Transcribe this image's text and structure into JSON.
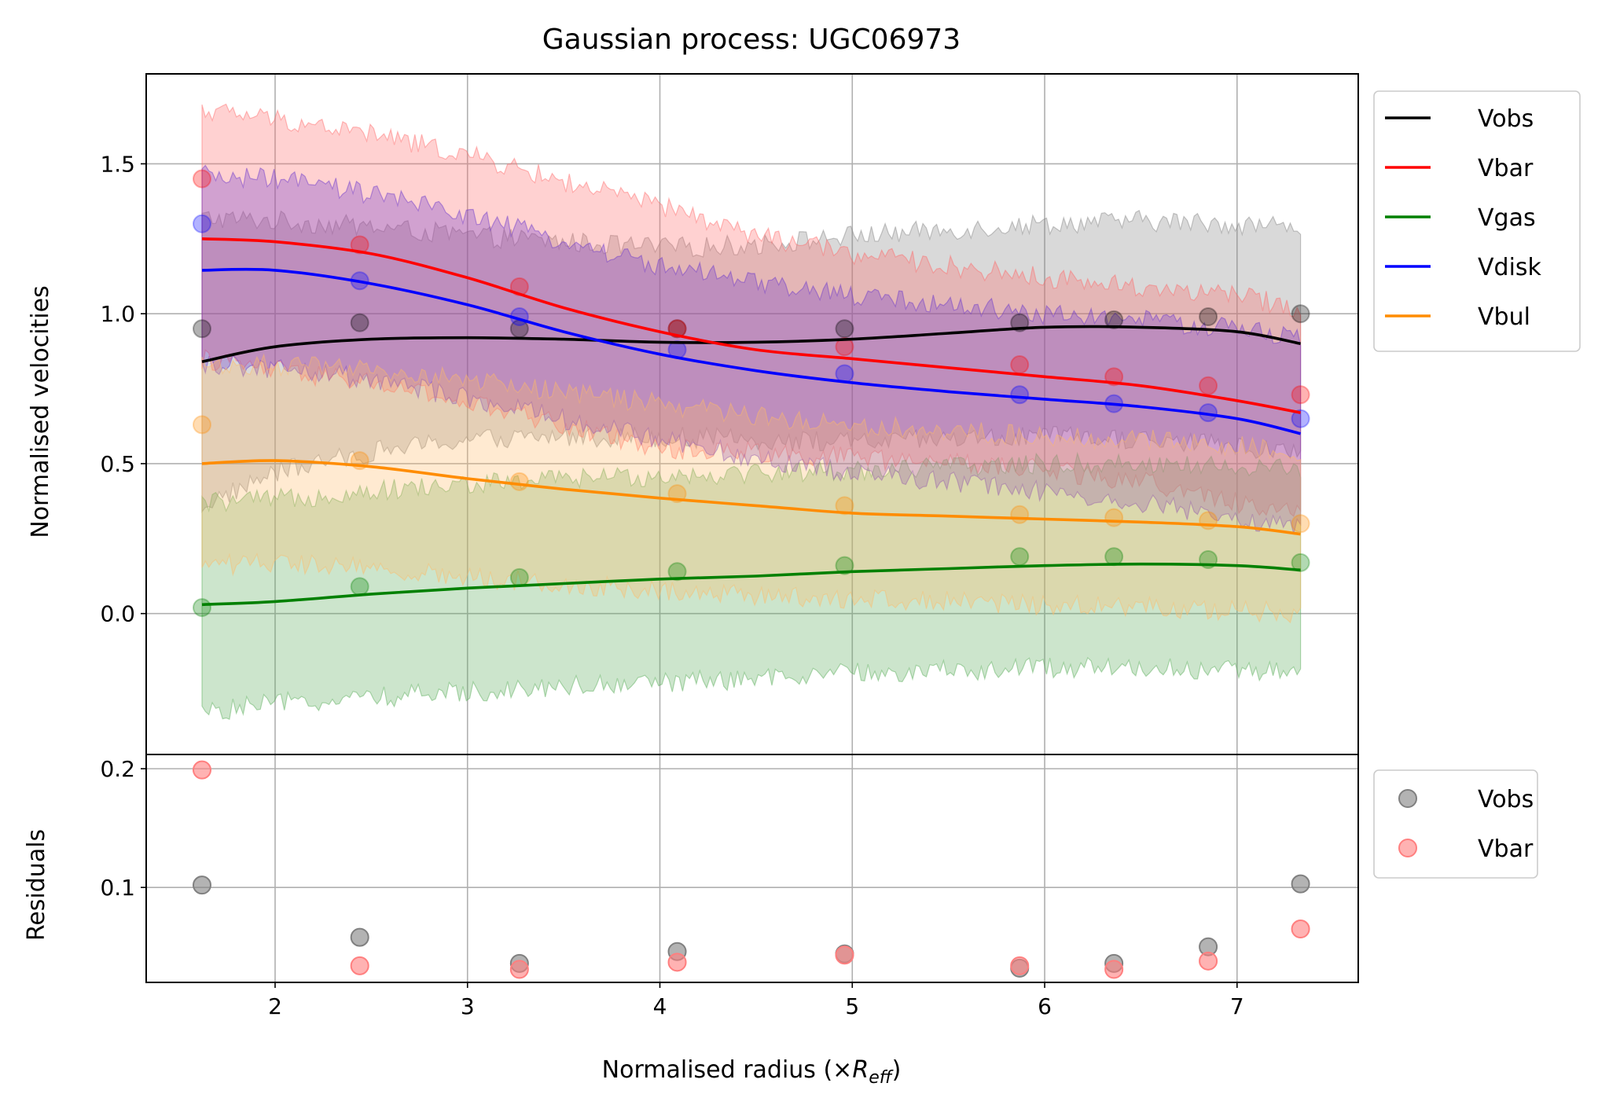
{
  "chart_data": [
    {
      "type": "line",
      "panel": "main",
      "title": "Gaussian process: UGC06973",
      "xlabel": "",
      "ylabel": "Normalised velocities",
      "xlim": [
        1.33,
        7.63
      ],
      "ylim": [
        -0.47,
        1.8
      ],
      "xticks": [
        2,
        3,
        4,
        5,
        6,
        7
      ],
      "yticks": [
        0.0,
        0.5,
        1.0,
        1.5
      ],
      "ytick_labels": [
        "0.0",
        "0.5",
        "1.0",
        "1.5"
      ],
      "grid": true,
      "legend_position": "outside-right-top",
      "points_x": [
        1.62,
        2.44,
        3.27,
        4.09,
        4.96,
        5.87,
        6.36,
        6.85,
        7.33
      ],
      "curve_x": [
        1.62,
        2.0,
        2.5,
        3.0,
        3.5,
        4.0,
        4.5,
        5.0,
        5.5,
        6.0,
        6.5,
        7.0,
        7.33
      ],
      "series": [
        {
          "name": "Vobs",
          "color": "#000000",
          "band_color": "#808080",
          "points": [
            0.95,
            0.97,
            0.95,
            0.95,
            0.95,
            0.97,
            0.98,
            0.99,
            1.0
          ],
          "curve": [
            0.84,
            0.89,
            0.915,
            0.92,
            0.915,
            0.905,
            0.905,
            0.915,
            0.935,
            0.955,
            0.955,
            0.94,
            0.9
          ],
          "band_lo": [
            0.36,
            0.47,
            0.54,
            0.58,
            0.59,
            0.59,
            0.58,
            0.57,
            0.58,
            0.59,
            0.58,
            0.56,
            0.53
          ],
          "band_hi": [
            1.32,
            1.31,
            1.29,
            1.26,
            1.24,
            1.22,
            1.23,
            1.26,
            1.28,
            1.3,
            1.31,
            1.3,
            1.29
          ]
        },
        {
          "name": "Vbar",
          "color": "#ff0000",
          "band_color": "#ff6666",
          "points": [
            1.45,
            1.23,
            1.09,
            0.95,
            0.89,
            0.83,
            0.79,
            0.76,
            0.73
          ],
          "curve": [
            1.25,
            1.24,
            1.2,
            1.12,
            1.02,
            0.94,
            0.88,
            0.85,
            0.82,
            0.79,
            0.76,
            0.71,
            0.67
          ],
          "band_lo": [
            0.85,
            0.81,
            0.77,
            0.7,
            0.63,
            0.55,
            0.54,
            0.52,
            0.5,
            0.48,
            0.44,
            0.37,
            0.33
          ],
          "band_hi": [
            1.68,
            1.65,
            1.6,
            1.53,
            1.44,
            1.36,
            1.26,
            1.2,
            1.16,
            1.12,
            1.09,
            1.06,
            1.02
          ]
        },
        {
          "name": "Vgas",
          "color": "#008000",
          "band_color": "#55aa55",
          "points": [
            0.02,
            0.09,
            0.12,
            0.14,
            0.16,
            0.19,
            0.19,
            0.18,
            0.17
          ],
          "curve": [
            0.03,
            0.04,
            0.065,
            0.085,
            0.1,
            0.115,
            0.125,
            0.14,
            0.15,
            0.16,
            0.165,
            0.16,
            0.145
          ],
          "band_lo": [
            -0.33,
            -0.3,
            -0.28,
            -0.26,
            -0.24,
            -0.23,
            -0.22,
            -0.2,
            -0.19,
            -0.18,
            -0.18,
            -0.19,
            -0.2
          ],
          "band_hi": [
            0.37,
            0.38,
            0.41,
            0.43,
            0.45,
            0.46,
            0.47,
            0.48,
            0.49,
            0.5,
            0.5,
            0.49,
            0.48
          ]
        },
        {
          "name": "Vdisk",
          "color": "#0000ff",
          "band_color": "#6633cc",
          "points": [
            1.3,
            1.11,
            0.99,
            0.88,
            0.8,
            0.73,
            0.7,
            0.67,
            0.65
          ],
          "curve": [
            1.145,
            1.145,
            1.1,
            1.03,
            0.94,
            0.865,
            0.81,
            0.77,
            0.74,
            0.715,
            0.69,
            0.65,
            0.6
          ],
          "band_lo": [
            0.83,
            0.82,
            0.78,
            0.72,
            0.65,
            0.58,
            0.52,
            0.47,
            0.44,
            0.41,
            0.37,
            0.32,
            0.28
          ],
          "band_hi": [
            1.46,
            1.45,
            1.4,
            1.33,
            1.24,
            1.16,
            1.1,
            1.06,
            1.03,
            1.0,
            0.98,
            0.95,
            0.92
          ]
        },
        {
          "name": "Vbul",
          "color": "#ff8c00",
          "band_color": "#ffbb66",
          "points": [
            0.63,
            0.51,
            0.44,
            0.4,
            0.36,
            0.33,
            0.32,
            0.31,
            0.3
          ],
          "curve": [
            0.5,
            0.51,
            0.49,
            0.45,
            0.415,
            0.385,
            0.36,
            0.335,
            0.325,
            0.315,
            0.305,
            0.29,
            0.265
          ],
          "band_lo": [
            0.16,
            0.17,
            0.15,
            0.12,
            0.1,
            0.08,
            0.06,
            0.05,
            0.04,
            0.03,
            0.02,
            0.01,
            0.0
          ],
          "band_hi": [
            0.83,
            0.83,
            0.81,
            0.78,
            0.74,
            0.7,
            0.66,
            0.63,
            0.61,
            0.59,
            0.58,
            0.56,
            0.54
          ]
        }
      ]
    },
    {
      "type": "scatter",
      "panel": "residuals",
      "title": "",
      "xlabel": "Normalised radius (×R_eff)",
      "ylabel": "Residuals",
      "xlim": [
        1.33,
        7.63
      ],
      "ylim": [
        0.02,
        0.212
      ],
      "xticks": [
        2,
        3,
        4,
        5,
        6,
        7
      ],
      "yticks": [
        0.1,
        0.2
      ],
      "ytick_labels": [
        "0.1",
        "0.2"
      ],
      "grid": true,
      "legend_position": "outside-right-top",
      "x": [
        1.62,
        2.44,
        3.27,
        4.09,
        4.96,
        5.87,
        6.36,
        6.85,
        7.33
      ],
      "series": [
        {
          "name": "Vobs",
          "color": "#808080",
          "values": [
            0.102,
            0.058,
            0.036,
            0.046,
            0.044,
            0.032,
            0.036,
            0.05,
            0.103
          ]
        },
        {
          "name": "Vbar",
          "color": "#ff7f7f",
          "values": [
            0.199,
            0.034,
            0.031,
            0.037,
            0.043,
            0.034,
            0.031,
            0.038,
            0.065
          ]
        }
      ]
    }
  ],
  "xlabel_parts": {
    "main": "Normalised radius (×",
    "var": "R",
    "sub": "eff",
    "close": ")"
  }
}
